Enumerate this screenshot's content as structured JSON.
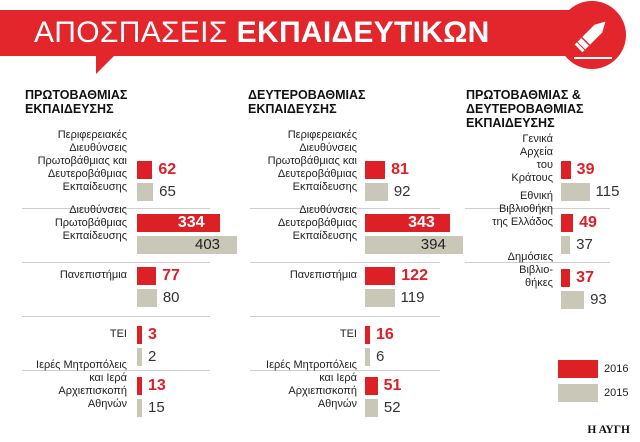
{
  "title": {
    "part1": "ΑΠΟΣΠΑΣΕΙΣ",
    "part2": "ΕΚΠΑΙΔΕΥΤΙΚΩΝ"
  },
  "colors": {
    "red": "#dd1f26",
    "gray": "#c9c7b7",
    "banner": "#e2262b"
  },
  "legend": [
    {
      "label": "2016",
      "color": "#dd1f26"
    },
    {
      "label": "2015",
      "color": "#c9c7b7"
    }
  ],
  "source": "Η ΑΥΓΗ",
  "chart_data": [
    {
      "type": "bar",
      "title": "ΠΡΩΤΟΒΑΘΜΙΑΣ ΕΚΠΑΙΔΕΥΣΗΣ",
      "categories": [
        "Περιφερειακές Διευθύνσεις Πρωτοβάθμιας και Δευτεροβάθμιας Εκπαίδευσης",
        "Διευθύνσεις Πρωτοβάθμιας Εκπαίδευσης",
        "Πανεπιστήμια",
        "ΤΕΙ",
        "Ιερές Μητροπόλεις και Ιερά Αρχιεπισκοπή Αθηνών"
      ],
      "series": [
        {
          "name": "2016",
          "values": [
            62,
            334,
            77,
            3,
            13
          ]
        },
        {
          "name": "2015",
          "values": [
            65,
            403,
            80,
            2,
            15
          ]
        }
      ]
    },
    {
      "type": "bar",
      "title": "ΔΕΥΤΕΡΟΒΑΘΜΙΑΣ ΕΚΠΑΙΔΕΥΣΗΣ",
      "categories": [
        "Περιφερειακές Διευθύνσεις Πρωτοβάθμιας και Δευτεροβάθμιας Εκπαίδευσης",
        "Διευθύνσεις Δευτεροβάθμιας Εκπαίδευσης",
        "Πανεπιστήμια",
        "ΤΕΙ",
        "Ιερές Μητροπόλεις και Ιερά Αρχιεπισκοπή Αθηνών"
      ],
      "series": [
        {
          "name": "2016",
          "values": [
            81,
            343,
            122,
            16,
            51
          ]
        },
        {
          "name": "2015",
          "values": [
            92,
            394,
            119,
            6,
            52
          ]
        }
      ]
    },
    {
      "type": "bar",
      "title": "ΠΡΩΤΟΒΑΘΜΙΑΣ & ΔΕΥΤΕΡΟΒΑΘΜΙΑΣ ΕΚΠΑΙΔΕΥΣΗΣ",
      "categories": [
        "Γενικά Αρχεία του Κράτους",
        "Εθνική Βιβλιοθήκη της Ελλάδος",
        "Δημόσιες Βιβλιοθήκες"
      ],
      "series": [
        {
          "name": "2016",
          "values": [
            39,
            49,
            37
          ]
        },
        {
          "name": "2015",
          "values": [
            115,
            37,
            93
          ]
        }
      ]
    }
  ],
  "labels": {
    "c0": [
      "Περιφερειακές\nΔιευθύνσεις\nΠρωτοβάθμιας και\nΔευτεροβάθμιας\nΕκπαίδευσης",
      "Διευθύνσεις\nΠρωτοβάθμιας\nΕκπαίδευσης",
      "Πανεπιστήμια",
      "ΤΕΙ",
      "Ιερές Μητροπόλεις\nκαι Ιερά\nΑρχιεπισκοπή\nΑθηνών"
    ],
    "c1": [
      "Περιφερειακές\nΔιευθύνσεις\nΠρωτοβάθμιας και\nΔευτεροβάθμιας\nΕκπαίδευσης",
      "Διευθύνσεις\nΔευτεροβάθμιας\nΕκπαίδευσης",
      "Πανεπιστήμια",
      "ΤΕΙ",
      "Ιερές Μητροπόλεις\nκαι Ιερά\nΑρχιεπισκοπή\nΑθηνών"
    ],
    "c2": [
      "Γενικά\nΑρχεία\nτου\nΚράτους",
      "Εθνική\nΒιβλιοθήκη\nτης Ελλάδος",
      "Δημόσιες\nΒιβλιο-\nθήκες"
    ]
  },
  "column_heads": {
    "c0": "ΠΡΩΤΟΒΑΘΜΙΑΣ\nΕΚΠΑΙΔΕΥΣΗΣ",
    "c1": "ΔΕΥΤΕΡΟΒΑΘΜΙΑΣ\nΕΚΠΑΙΔΕΥΣΗΣ",
    "c2": "ΠΡΩΤΟΒΑΘΜΙΑΣ &\nΔΕΥΤΕΡΟΒΑΘΜΙΑΣ\nΕΚΠΑΙΔΕΥΣΗΣ"
  }
}
